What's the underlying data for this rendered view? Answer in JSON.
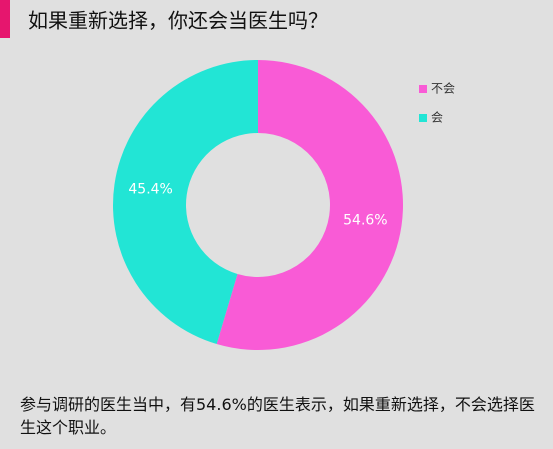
{
  "chart_data": {
    "type": "donut",
    "title": "如果重新选择，你还会当医生吗？",
    "categories": [
      "不会",
      "会"
    ],
    "values": [
      54.6,
      45.4
    ],
    "value_labels": [
      "54.6%",
      "45.4%"
    ],
    "colors": [
      "#f95bd6",
      "#22e5d5"
    ],
    "legend": "right",
    "caption": "参与调研的医生当中，有54.6%的医生表示，如果重新选择，不会选择医生这个职业。"
  }
}
